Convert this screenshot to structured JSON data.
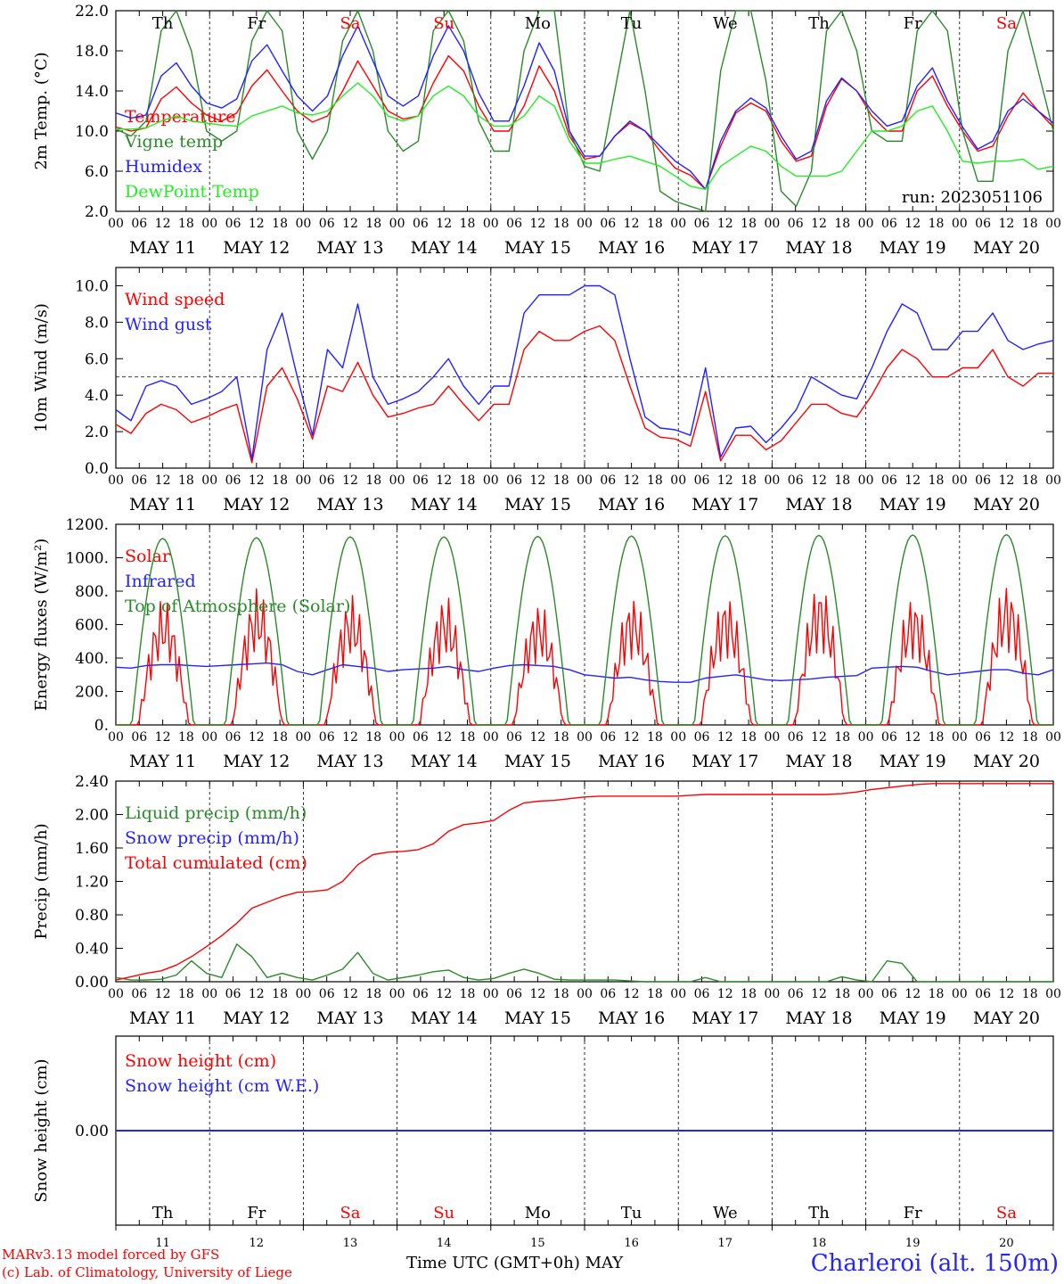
{
  "chart_data": {
    "type": "line",
    "days": [
      "MAY 11",
      "MAY 12",
      "MAY 13",
      "MAY 14",
      "MAY 15",
      "MAY 16",
      "MAY 17",
      "MAY 18",
      "MAY 19",
      "MAY 20"
    ],
    "weekdays": [
      "Th",
      "Fr",
      "Sa",
      "Su",
      "Mo",
      "Tu",
      "We",
      "Th",
      "Fr",
      "Sa"
    ],
    "weekday_colors": [
      "#000000",
      "#000000",
      "#ff0000",
      "#ff0000",
      "#000000",
      "#000000",
      "#000000",
      "#000000",
      "#000000",
      "#ff0000"
    ],
    "bottom_day_numbers": [
      "11",
      "12",
      "13",
      "14",
      "15",
      "16",
      "17",
      "18",
      "19",
      "20"
    ],
    "hour_ticks": [
      "00",
      "06",
      "12",
      "18"
    ],
    "x_axis_label": "Time UTC (GMT+0h)",
    "x_axis_month": "MAY",
    "panels": [
      {
        "id": "temperature",
        "ylabel": "2m Temp. (°C)",
        "ylim": [
          2.0,
          22.0
        ],
        "yticks": [
          "2.0",
          "6.0",
          "10.0",
          "14.0",
          "18.0",
          "22.0"
        ],
        "run_label": "run: 2023051106",
        "series": [
          {
            "name": "Temperature",
            "color": "#ff0000",
            "values": [
              10.4,
              10.0,
              10.3,
              13.2,
              14.4,
              12.8,
              11.6,
              11.0,
              11.8,
              14.5,
              16.1,
              14.0,
              12.0,
              10.9,
              11.5,
              14.0,
              17.0,
              14.5,
              12.0,
              11.2,
              11.5,
              14.8,
              17.5,
              16.0,
              12.5,
              10.0,
              10.0,
              12.5,
              16.5,
              14.0,
              9.5,
              7.2,
              7.5,
              9.5,
              10.8,
              10.0,
              8.0,
              6.3,
              5.6,
              4.2,
              8.5,
              11.8,
              12.8,
              12.0,
              9.0,
              7.0,
              7.5,
              12.5,
              15.2,
              14.0,
              11.5,
              10.0,
              10.0,
              14.0,
              15.5,
              12.5,
              10.0,
              8.0,
              8.5,
              11.5,
              13.8,
              12.0,
              10.4
            ]
          },
          {
            "name": "Vigne temp",
            "color": "#2a8a2a",
            "values": [
              10.2,
              9.5,
              11.0,
              20.0,
              22.0,
              18.0,
              10.0,
              9.0,
              10.0,
              19.0,
              22.0,
              20.0,
              10.0,
              7.2,
              10.0,
              19.0,
              22.0,
              18.0,
              10.0,
              8.0,
              9.0,
              20.0,
              22.0,
              19.0,
              11.0,
              8.0,
              8.0,
              18.0,
              22.0,
              22.0,
              10.0,
              6.5,
              6.0,
              14.0,
              22.0,
              14.0,
              4.0,
              3.0,
              2.5,
              2.0,
              16.0,
              22.0,
              22.0,
              15.0,
              4.0,
              2.5,
              6.0,
              20.0,
              22.0,
              18.0,
              10.0,
              9.0,
              9.0,
              20.0,
              22.0,
              20.0,
              10.0,
              5.0,
              5.0,
              18.0,
              22.0,
              16.0,
              10.0
            ]
          },
          {
            "name": "Humidex",
            "color": "#2222ff",
            "values": [
              11.8,
              11.3,
              11.6,
              15.5,
              16.8,
              14.5,
              12.8,
              12.3,
              13.2,
              17.0,
              18.6,
              16.0,
              13.5,
              12.0,
              13.5,
              17.5,
              20.5,
              17.0,
              13.5,
              12.5,
              13.5,
              17.5,
              20.5,
              18.0,
              13.8,
              11.0,
              11.0,
              14.5,
              18.8,
              16.0,
              10.0,
              7.5,
              7.5,
              9.5,
              11.0,
              10.0,
              8.5,
              7.0,
              6.0,
              4.2,
              9.0,
              12.0,
              13.3,
              12.3,
              9.5,
              7.2,
              8.0,
              13.0,
              15.3,
              14.0,
              12.0,
              10.5,
              11.0,
              14.5,
              16.3,
              13.0,
              10.4,
              8.2,
              9.0,
              12.0,
              13.2,
              12.0,
              10.8
            ]
          },
          {
            "name": "DewPoint Temp",
            "color": "#22ee22",
            "values": [
              10.2,
              10.2,
              10.3,
              11.0,
              11.5,
              11.0,
              10.8,
              10.6,
              10.5,
              11.5,
              12.0,
              12.5,
              11.8,
              11.6,
              12.0,
              13.5,
              14.8,
              13.5,
              11.5,
              11.0,
              11.5,
              13.5,
              14.5,
              13.5,
              11.5,
              10.5,
              10.5,
              11.5,
              13.5,
              12.5,
              9.0,
              6.8,
              6.8,
              7.2,
              7.5,
              7.0,
              6.5,
              5.5,
              4.5,
              4.2,
              6.5,
              7.5,
              8.5,
              8.0,
              6.5,
              5.5,
              5.5,
              5.5,
              6.0,
              8.0,
              10.0,
              10.0,
              10.5,
              12.0,
              12.5,
              10.0,
              7.0,
              6.8,
              7.0,
              7.0,
              7.2,
              6.2,
              6.5
            ]
          }
        ]
      },
      {
        "id": "wind",
        "ylabel": "10m Wind (m/s)",
        "ylim": [
          0.0,
          11.0
        ],
        "yticks": [
          "0.0",
          "2.0",
          "4.0",
          "6.0",
          "8.0",
          "10.0"
        ],
        "series": [
          {
            "name": "Wind speed",
            "color": "#ff0000",
            "values": [
              2.4,
              1.9,
              3.0,
              3.5,
              3.2,
              2.5,
              2.8,
              3.2,
              3.5,
              0.3,
              4.5,
              5.5,
              3.8,
              1.6,
              4.5,
              4.2,
              5.8,
              4.0,
              2.8,
              3.0,
              3.3,
              3.5,
              4.5,
              3.5,
              2.6,
              3.5,
              3.5,
              6.5,
              7.5,
              7.0,
              7.0,
              7.5,
              7.8,
              7.0,
              4.5,
              2.2,
              1.7,
              1.6,
              1.2,
              4.2,
              0.4,
              1.8,
              1.8,
              1.0,
              1.5,
              2.5,
              3.5,
              3.5,
              3.0,
              2.8,
              4.0,
              5.5,
              6.5,
              6.0,
              5.0,
              5.0,
              5.5,
              5.5,
              6.5,
              5.0,
              4.5,
              5.2,
              5.2
            ]
          },
          {
            "name": "Wind gust",
            "color": "#2222ff",
            "values": [
              3.2,
              2.6,
              4.5,
              4.8,
              4.5,
              3.5,
              3.8,
              4.2,
              5.0,
              0.5,
              6.5,
              8.5,
              5.0,
              1.8,
              6.5,
              5.5,
              9.0,
              5.0,
              3.5,
              3.8,
              4.2,
              5.0,
              6.0,
              4.5,
              3.5,
              4.5,
              4.5,
              8.5,
              9.5,
              9.5,
              9.5,
              10.0,
              10.0,
              9.5,
              6.0,
              2.8,
              2.2,
              2.1,
              1.8,
              5.5,
              0.6,
              2.2,
              2.3,
              1.4,
              2.2,
              3.2,
              5.0,
              4.5,
              4.0,
              3.8,
              5.5,
              7.5,
              9.0,
              8.5,
              6.5,
              6.5,
              7.5,
              7.5,
              8.5,
              7.0,
              6.5,
              6.8,
              7.0
            ]
          }
        ]
      },
      {
        "id": "energy",
        "ylabel": "Energy fluxes (W/m²)",
        "ylim": [
          0,
          1200
        ],
        "yticks": [
          "0.",
          "200.",
          "400.",
          "600.",
          "800.",
          "1000.",
          "1200."
        ],
        "series": [
          {
            "name": "Solar",
            "color": "#ff0000",
            "peaks": [
              760,
              820,
              780,
              780,
              740,
              780,
              790,
              860,
              780,
              860
            ]
          },
          {
            "name": "Infrared",
            "color": "#2222ff",
            "values": [
              345,
              340,
              355,
              360,
              360,
              355,
              350,
              355,
              360,
              365,
              370,
              360,
              320,
              300,
              330,
              360,
              350,
              340,
              320,
              330,
              335,
              340,
              350,
              330,
              320,
              340,
              355,
              360,
              355,
              350,
              330,
              300,
              290,
              280,
              285,
              270,
              260,
              255,
              255,
              280,
              290,
              300,
              285,
              270,
              265,
              270,
              275,
              285,
              290,
              295,
              340,
              345,
              350,
              345,
              320,
              300,
              310,
              320,
              330,
              330,
              310,
              300,
              330
            ]
          },
          {
            "name": "Top of Atmosphere (Solar)",
            "color": "#2a8a2a",
            "peaks": [
              1115,
              1120,
              1125,
              1125,
              1128,
              1130,
              1132,
              1134,
              1136,
              1138
            ]
          }
        ]
      },
      {
        "id": "precip",
        "ylabel": "Precip (mm/h)",
        "ylim": [
          0.0,
          2.4
        ],
        "yticks": [
          "0.00",
          "0.40",
          "0.80",
          "1.20",
          "1.60",
          "2.00",
          "2.40"
        ],
        "series": [
          {
            "name": "Liquid precip (mm/h)",
            "color": "#2a8a2a",
            "values": [
              0.05,
              0.02,
              0.02,
              0.03,
              0.08,
              0.25,
              0.1,
              0.05,
              0.45,
              0.3,
              0.05,
              0.1,
              0.05,
              0.02,
              0.08,
              0.15,
              0.35,
              0.1,
              0.02,
              0.05,
              0.08,
              0.12,
              0.14,
              0.05,
              0.02,
              0.04,
              0.1,
              0.15,
              0.1,
              0.03,
              0.02,
              0.02,
              0.02,
              0.02,
              0.01,
              0.0,
              0.0,
              0.0,
              0.0,
              0.05,
              0.0,
              0.0,
              0.0,
              0.0,
              0.0,
              0.0,
              0.0,
              0.0,
              0.06,
              0.02,
              0.0,
              0.25,
              0.22,
              0.0,
              0.0,
              0.0,
              0.0,
              0.0,
              0.0,
              0.0,
              0.0,
              0.0,
              0.0
            ]
          },
          {
            "name": "Snow precip (mm/h)",
            "color": "#2222ff",
            "values": []
          },
          {
            "name": "Total cumulated (cm)",
            "color": "#ff0000",
            "values": [
              0.02,
              0.06,
              0.1,
              0.13,
              0.2,
              0.3,
              0.42,
              0.55,
              0.7,
              0.88,
              0.95,
              1.02,
              1.07,
              1.08,
              1.1,
              1.2,
              1.4,
              1.52,
              1.55,
              1.56,
              1.58,
              1.65,
              1.8,
              1.88,
              1.9,
              1.93,
              2.05,
              2.14,
              2.16,
              2.17,
              2.19,
              2.21,
              2.22,
              2.22,
              2.22,
              2.22,
              2.22,
              2.22,
              2.23,
              2.24,
              2.24,
              2.24,
              2.24,
              2.24,
              2.24,
              2.24,
              2.24,
              2.24,
              2.25,
              2.27,
              2.3,
              2.32,
              2.34,
              2.36,
              2.37,
              2.37,
              2.37,
              2.37,
              2.37,
              2.37,
              2.37,
              2.37,
              2.37
            ]
          }
        ]
      },
      {
        "id": "snow",
        "ylabel": "Snow height (cm)",
        "ylim": [
          -1,
          1
        ],
        "yticks": [
          "0.00"
        ],
        "series": [
          {
            "name": "Snow height (cm)",
            "color": "#ff0000",
            "values": [
              0,
              0
            ]
          },
          {
            "name": "Snow height (cm W.E.)",
            "color": "#2222ff",
            "values": [
              0,
              0
            ]
          }
        ]
      }
    ]
  },
  "footer": {
    "credit_line1": "MARv3.13 model forced by GFS",
    "credit_line2": "(c) Lab. of Climatology, University of Liege",
    "station": "Charleroi (alt. 150m)"
  }
}
